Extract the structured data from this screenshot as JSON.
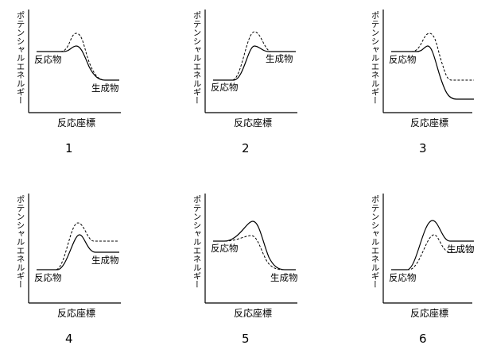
{
  "axis": {
    "ylabel": "ポテンシャルエネルギー",
    "xlabel": "反応座標"
  },
  "labels": {
    "reactant": "反応物",
    "product": "生成物"
  },
  "panels": [
    {
      "number": "1"
    },
    {
      "number": "2"
    },
    {
      "number": "3"
    },
    {
      "number": "4"
    },
    {
      "number": "5"
    },
    {
      "number": "6"
    }
  ]
}
